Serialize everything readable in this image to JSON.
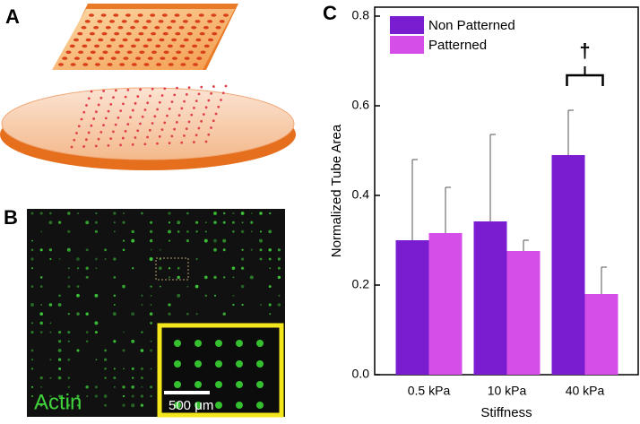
{
  "panel_labels": [
    "A",
    "B",
    "C"
  ],
  "image_labels": {
    "stain": "Actin",
    "scale_bar": "500 μm"
  },
  "chart_data": {
    "type": "bar",
    "x_label": "Stiffness",
    "y_label": "Normalized Tube Area",
    "categories": [
      "0.5 kPa",
      "10 kPa",
      "40 kPa"
    ],
    "series": [
      {
        "name": "Non Patterned",
        "color": "#7a1dd0",
        "values": [
          0.3,
          0.342,
          0.49
        ],
        "errors": [
          0.18,
          0.194,
          0.1
        ]
      },
      {
        "name": "Patterned",
        "color": "#d64ee8",
        "values": [
          0.316,
          0.276,
          0.18
        ],
        "errors": [
          0.102,
          0.024,
          0.06
        ]
      }
    ],
    "ylim": [
      0,
      0.8
    ],
    "yticks": [
      {
        "value": 0,
        "label": "0.0"
      },
      0.2,
      0.4,
      0.6,
      0.8
    ],
    "grid": false,
    "legend": "top-left",
    "annotation": {
      "text": "†",
      "category": 2
    }
  }
}
